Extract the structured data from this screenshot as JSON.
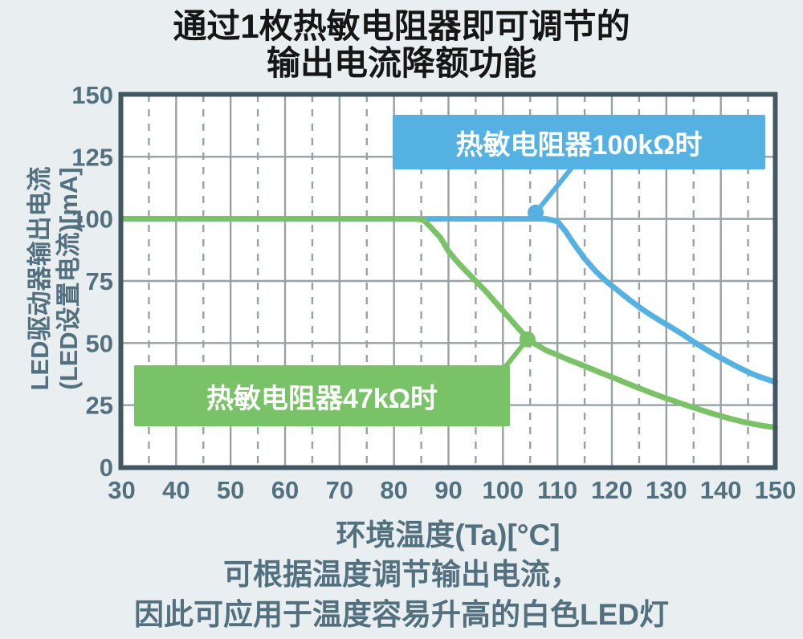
{
  "page": {
    "title_line1": "通过1枚热敏电阻器即可调节的",
    "title_line2": "输出电流降额功能",
    "caption_line1": "可根据温度调节输出电流，",
    "caption_line2": "因此可应用于温度容易升高的白色LED灯"
  },
  "colors": {
    "background": "#e9eef1",
    "plot_background": "#ffffff",
    "plot_border": "#415761",
    "grid_major": "#98a1a6",
    "grid_minor": "#98a1a6",
    "axis_text": "#53707e",
    "title_text": "#161616",
    "series_100k": "#56b1e3",
    "series_47k": "#7ac268",
    "callout_text": "#ffffff"
  },
  "chart_data": {
    "type": "line",
    "title": "通过1枚热敏电阻器即可调节的输出电流降额功能",
    "xlabel": "环境温度(Ta)[°C]",
    "ylabel_line1": "LED驱动器输出电流",
    "ylabel_line2": "(LED设置电流)[mA]",
    "xlim": [
      30,
      150
    ],
    "ylim": [
      0,
      150
    ],
    "xticks": [
      30,
      40,
      50,
      60,
      70,
      80,
      90,
      100,
      110,
      120,
      130,
      140,
      150
    ],
    "yticks": [
      0,
      25,
      50,
      75,
      100,
      125,
      150
    ],
    "grid": {
      "x_major_step": 10,
      "x_minor_step": 5,
      "y_major_step": 25,
      "minor_style": "dashed vertical lines at every 5°C",
      "major_style": "solid"
    },
    "legend_position": "callout boxes inside plot",
    "series": [
      {
        "id": "100k",
        "name": "热敏电阻器100kΩ时",
        "color": "#56b1e3",
        "callout_label": "热敏电阻器100kΩ时",
        "marker": {
          "x": 106,
          "y": 102.5,
          "note": "dot at ~105°C on 100 mA flat section"
        },
        "connector_anchor": {
          "x": 112.8,
          "y": 121
        },
        "points": [
          [
            30,
            100
          ],
          [
            105,
            100
          ],
          [
            108,
            100
          ],
          [
            110,
            99
          ],
          [
            111.5,
            95
          ],
          [
            113,
            90
          ],
          [
            115,
            84
          ],
          [
            117,
            79
          ],
          [
            119,
            74.8
          ],
          [
            121,
            71.3
          ],
          [
            123,
            67.8
          ],
          [
            125,
            64.5
          ],
          [
            127,
            61.5
          ],
          [
            129,
            58.8
          ],
          [
            131,
            56.2
          ],
          [
            133,
            53.5
          ],
          [
            135,
            50.5
          ],
          [
            137,
            47.8
          ],
          [
            139,
            45.2
          ],
          [
            141,
            42.8
          ],
          [
            143,
            40.5
          ],
          [
            145,
            38.3
          ],
          [
            147,
            36.5
          ],
          [
            149,
            35
          ],
          [
            150,
            34.3
          ]
        ]
      },
      {
        "id": "47k",
        "name": "热敏电阻器47kΩ时",
        "color": "#7ac268",
        "callout_label": "热敏电阻器47kΩ时",
        "marker": {
          "x": 104.5,
          "y": 51.5,
          "note": "dot at ~105°C, ~50 mA"
        },
        "connector_anchor": {
          "x": 100.2,
          "y": 39.8
        },
        "points": [
          [
            30,
            100
          ],
          [
            84,
            100
          ],
          [
            85.5,
            99.5
          ],
          [
            87,
            96
          ],
          [
            88.5,
            92.5
          ],
          [
            90,
            87
          ],
          [
            91.5,
            83
          ],
          [
            93,
            79.5
          ],
          [
            95,
            75
          ],
          [
            97,
            70.5
          ],
          [
            99,
            65.5
          ],
          [
            101,
            60.5
          ],
          [
            103,
            55.5
          ],
          [
            104.5,
            52
          ],
          [
            106,
            49.5
          ],
          [
            108,
            47
          ],
          [
            110,
            45.2
          ],
          [
            112,
            43.3
          ],
          [
            114,
            41.6
          ],
          [
            116,
            39.8
          ],
          [
            118,
            38
          ],
          [
            120,
            36.3
          ],
          [
            122,
            34.5
          ],
          [
            124,
            32.7
          ],
          [
            126,
            31
          ],
          [
            128,
            29.3
          ],
          [
            130,
            27.7
          ],
          [
            132,
            26.2
          ],
          [
            134,
            24.7
          ],
          [
            136,
            23.3
          ],
          [
            138,
            21.9
          ],
          [
            140,
            20.6
          ],
          [
            142,
            19.4
          ],
          [
            144,
            18.3
          ],
          [
            146,
            17.4
          ],
          [
            148,
            16.6
          ],
          [
            150,
            16
          ]
        ]
      }
    ]
  }
}
